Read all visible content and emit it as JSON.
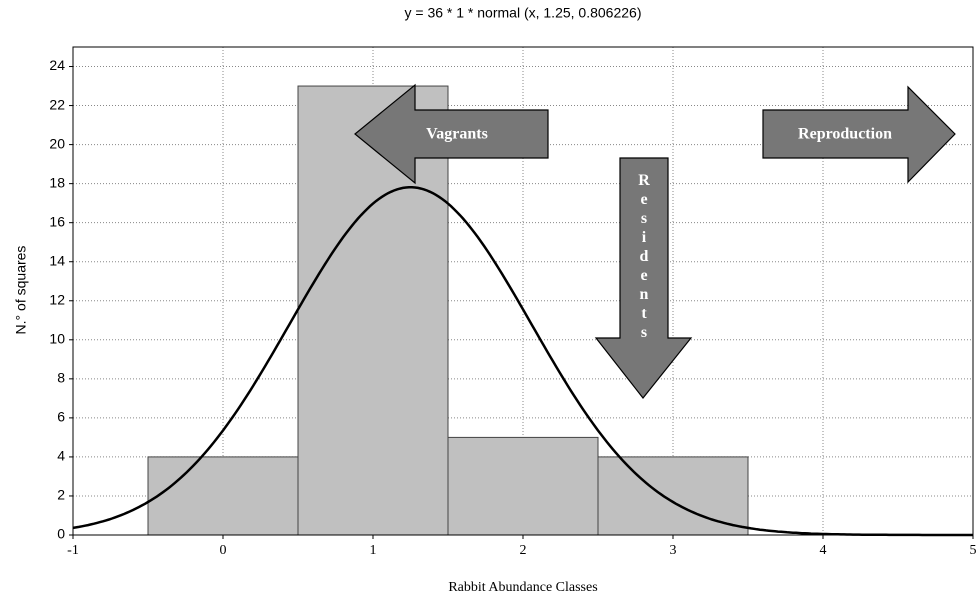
{
  "chart_data": {
    "type": "histogram",
    "title": "y = 36 * 1 * normal (x, 1.25, 0.806226)",
    "x_label": "Rabbit Abundance Classes",
    "y_label": "N.° of squares",
    "bins": [
      -0.5,
      0.5,
      1.5,
      2.5,
      3.5
    ],
    "values": [
      4,
      23,
      5,
      4
    ],
    "color": "#c0c0c0",
    "xlim": [
      -1,
      5
    ],
    "xticks": [
      -1,
      0,
      1,
      2,
      3,
      4,
      5
    ],
    "ylim": [
      0,
      25
    ],
    "yticks": [
      0,
      2,
      4,
      6,
      8,
      10,
      12,
      14,
      16,
      18,
      20,
      22,
      24
    ],
    "grid": true,
    "fit": {
      "n": 36,
      "width": 1,
      "mean": 1.25,
      "sd": 0.806226
    },
    "annotations": [
      "Vagrants",
      "Reproduction",
      "Residents"
    ]
  }
}
